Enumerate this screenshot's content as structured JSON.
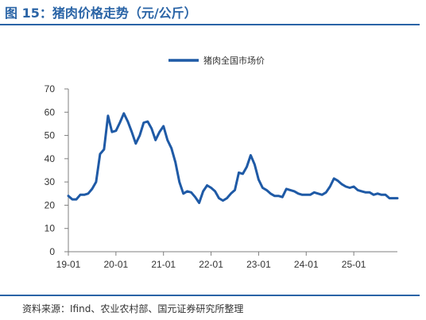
{
  "figure": {
    "title": "图 15：猪肉价格走势（元/公斤）",
    "source": "资料来源：Ifind、农业农村部、国元证券研究所整理"
  },
  "colors": {
    "accent": "#2a64a6",
    "series": "#1f5aa6",
    "axis": "#7f7f7f"
  },
  "chart_data": {
    "type": "line",
    "title": "",
    "xlabel": "",
    "ylabel": "",
    "grid": false,
    "legend_position": "top-center",
    "ylim": [
      0,
      70
    ],
    "yticks": [
      0,
      10,
      20,
      30,
      40,
      50,
      60,
      70
    ],
    "xlim": [
      "2019-01",
      "2025-12"
    ],
    "xticks": [
      "19-01",
      "20-01",
      "21-01",
      "22-01",
      "23-01",
      "24-01",
      "25-01"
    ],
    "series": [
      {
        "name": "猪肉全国市场价",
        "x": [
          "2019-01",
          "2019-02",
          "2019-03",
          "2019-04",
          "2019-05",
          "2019-06",
          "2019-07",
          "2019-08",
          "2019-09",
          "2019-10",
          "2019-11",
          "2019-12",
          "2020-01",
          "2020-02",
          "2020-03",
          "2020-04",
          "2020-05",
          "2020-06",
          "2020-07",
          "2020-08",
          "2020-09",
          "2020-10",
          "2020-11",
          "2020-12",
          "2021-01",
          "2021-02",
          "2021-03",
          "2021-04",
          "2021-05",
          "2021-06",
          "2021-07",
          "2021-08",
          "2021-09",
          "2021-10",
          "2021-11",
          "2021-12",
          "2022-01",
          "2022-02",
          "2022-03",
          "2022-04",
          "2022-05",
          "2022-06",
          "2022-07",
          "2022-08",
          "2022-09",
          "2022-10",
          "2022-11",
          "2022-12",
          "2023-01",
          "2023-02",
          "2023-03",
          "2023-04",
          "2023-05",
          "2023-06",
          "2023-07",
          "2023-08",
          "2023-09",
          "2023-10",
          "2023-11",
          "2023-12",
          "2024-01",
          "2024-02",
          "2024-03",
          "2024-04",
          "2024-05",
          "2024-06",
          "2024-07",
          "2024-08",
          "2024-09",
          "2024-10",
          "2024-11",
          "2024-12",
          "2025-01",
          "2025-02",
          "2025-03",
          "2025-04",
          "2025-05",
          "2025-06",
          "2025-07",
          "2025-08",
          "2025-09",
          "2025-10",
          "2025-11",
          "2025-12"
        ],
        "values": [
          24,
          22.5,
          22.5,
          24.5,
          24.5,
          25,
          27,
          30,
          42,
          44,
          58.5,
          51.5,
          52,
          55.5,
          59.5,
          56,
          51.5,
          46.5,
          50,
          55.5,
          56,
          53,
          48,
          51.5,
          54,
          48,
          44.5,
          38.5,
          30,
          25,
          26,
          25.5,
          23.5,
          21,
          26,
          28.5,
          27.5,
          26,
          23,
          22,
          23,
          25,
          26.5,
          34,
          33.5,
          36.5,
          41.5,
          37.5,
          31,
          27.5,
          26.5,
          25,
          24,
          24,
          23.5,
          27,
          26.5,
          26,
          25,
          24.5,
          24.5,
          24.5,
          25.5,
          25,
          24.5,
          25.5,
          28,
          31.5,
          30.5,
          29,
          28,
          27.5,
          28,
          26.5,
          26,
          25.5,
          25.5,
          24.5,
          25,
          24.5,
          24.5,
          23,
          23,
          23
        ]
      }
    ]
  }
}
